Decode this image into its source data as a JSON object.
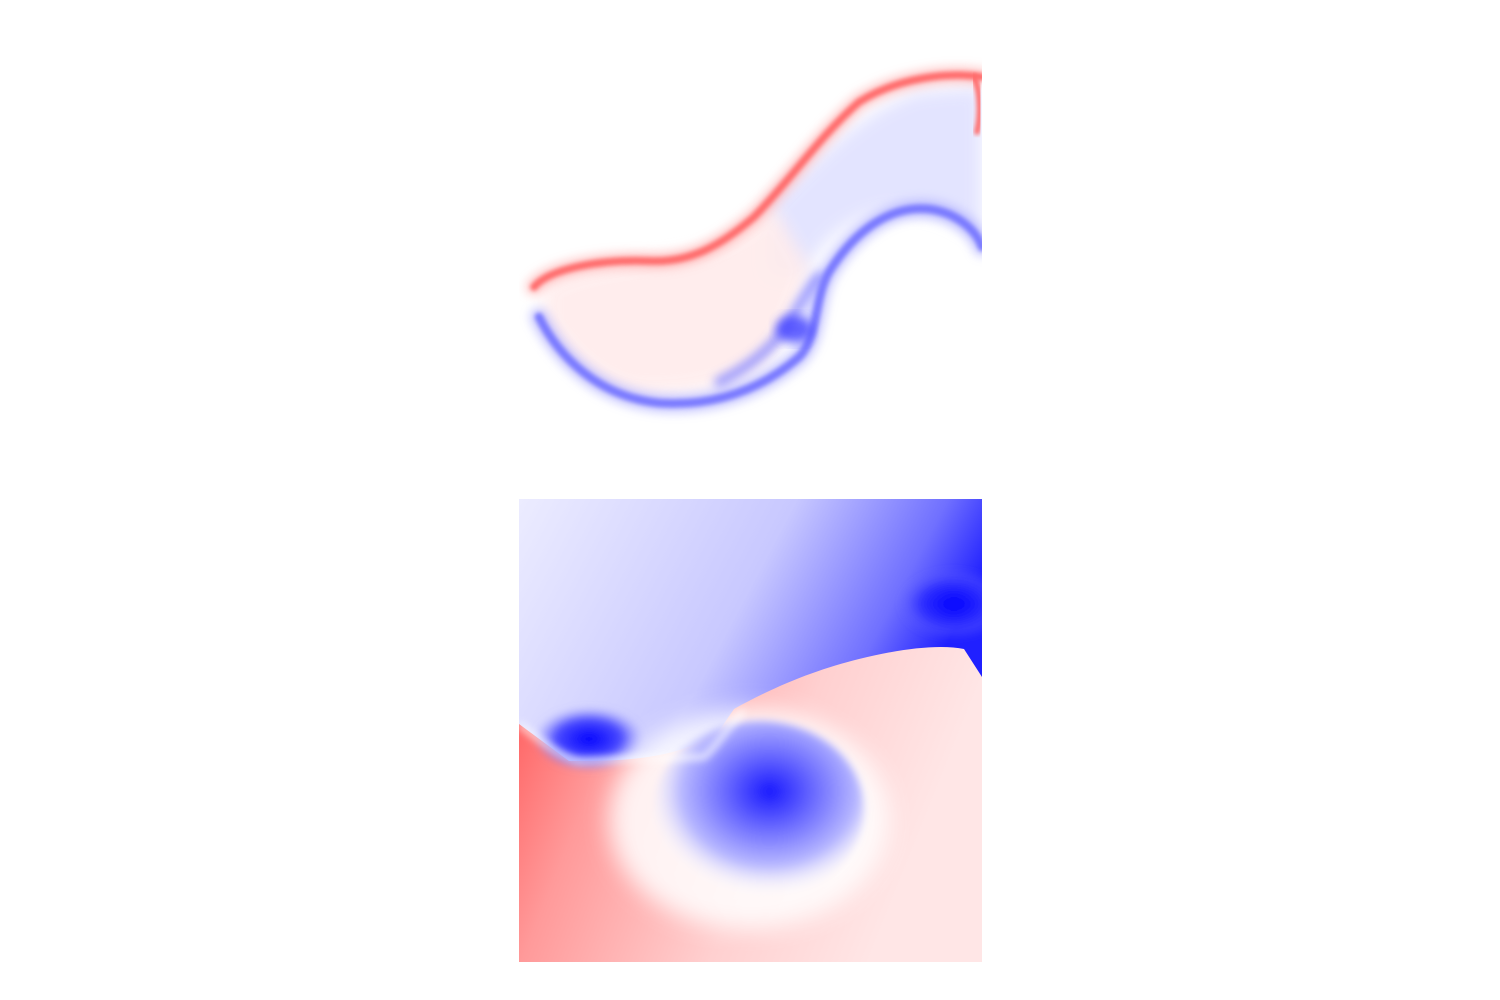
{
  "panels": [
    {
      "icon": "vorticity-field-icon",
      "colormap": {
        "negative": "#0000ff",
        "zero": "#ffffff",
        "positive": "#ff0000"
      }
    },
    {
      "icon": "pressure-field-icon",
      "colormap": {
        "negative": "#0000ff",
        "zero": "#ffffff",
        "positive": "#ff0000"
      }
    }
  ]
}
